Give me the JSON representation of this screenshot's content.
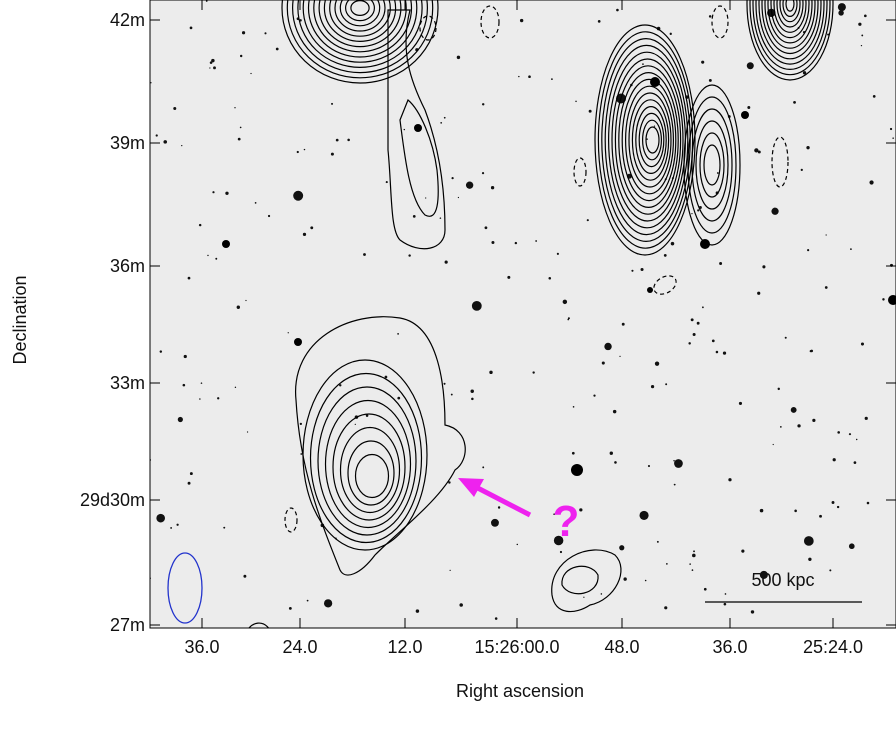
{
  "figure": {
    "y_axis": {
      "label": "Declination",
      "ticks": [
        "42m",
        "39m",
        "36m",
        "33m",
        "29d30m",
        "27m"
      ]
    },
    "x_axis": {
      "label": "Right ascension",
      "ticks": [
        "36.0",
        "24.0",
        "12.0",
        "15:26:00.0",
        "48.0",
        "36.0",
        "25:24.0"
      ]
    },
    "annotations": {
      "scale_bar": "500 kpc",
      "question": "?"
    }
  }
}
